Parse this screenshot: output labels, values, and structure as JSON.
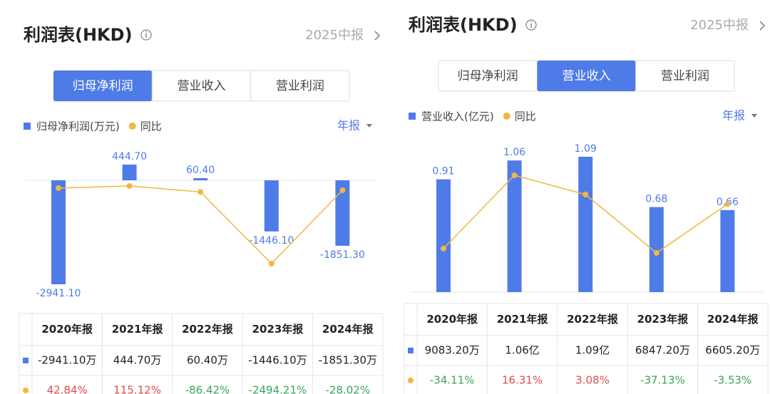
{
  "panels": [
    {
      "title": "利润表(HKD)",
      "period": "2025中报",
      "tabs": [
        "归母净利润",
        "营业收入",
        "营业利润"
      ],
      "active_tab": 0,
      "report_type": "年报",
      "table": [
        [
          "-2941.10万",
          "444.70万",
          "60.40万",
          "-1446.10万",
          "-1851.30万"
        ]
      ]
    },
    {
      "title": "利润表(HKD)",
      "period": "2025中报",
      "tabs": [
        "归母净利润",
        "营业收入",
        "营业利润"
      ],
      "active_tab": 1,
      "report_type": "年报",
      "table": [
        [
          "9083.20万",
          "1.06亿",
          "1.09亿",
          "6847.20万",
          "6605.20万"
        ]
      ]
    }
  ],
  "chart_data": [
    {
      "type": "bar",
      "categories": [
        "2020年报",
        "2021年报",
        "2022年报",
        "2023年报",
        "2024年报"
      ],
      "series": [
        {
          "name": "归母净利润(万元)",
          "color": "#4f7be8",
          "values": [
            -2941.1,
            444.7,
            60.4,
            -1446.1,
            -1851.3
          ],
          "value_labels": [
            "-2941.10",
            "444.70",
            "60.40",
            "-1446.10",
            "-1851.30"
          ]
        },
        {
          "name": "同比",
          "type": "line",
          "axis": "y2",
          "color": "#f0b840",
          "values": [
            42.84,
            115.12,
            -86.42,
            -2494.21,
            -28.02
          ],
          "value_labels": [
            "42.84%",
            "115.12%",
            "-86.42%",
            "-2494.21%",
            "-28.02%"
          ]
        }
      ]
    },
    {
      "type": "bar",
      "categories": [
        "2020年报",
        "2021年报",
        "2022年报",
        "2023年报",
        "2024年报"
      ],
      "series": [
        {
          "name": "营业收入(亿元)",
          "color": "#4f7be8",
          "values": [
            0.9083,
            1.06,
            1.09,
            0.6847,
            0.6605
          ],
          "value_labels": [
            "0.91",
            "1.06",
            "1.09",
            "0.68",
            "0.66"
          ]
        },
        {
          "name": "同比",
          "type": "line",
          "axis": "y2",
          "color": "#f0b840",
          "values": [
            -34.11,
            16.31,
            3.08,
            -37.13,
            -3.53
          ],
          "value_labels": [
            "-34.11%",
            "16.31%",
            "3.08%",
            "-37.13%",
            "-3.53%"
          ]
        }
      ]
    }
  ]
}
